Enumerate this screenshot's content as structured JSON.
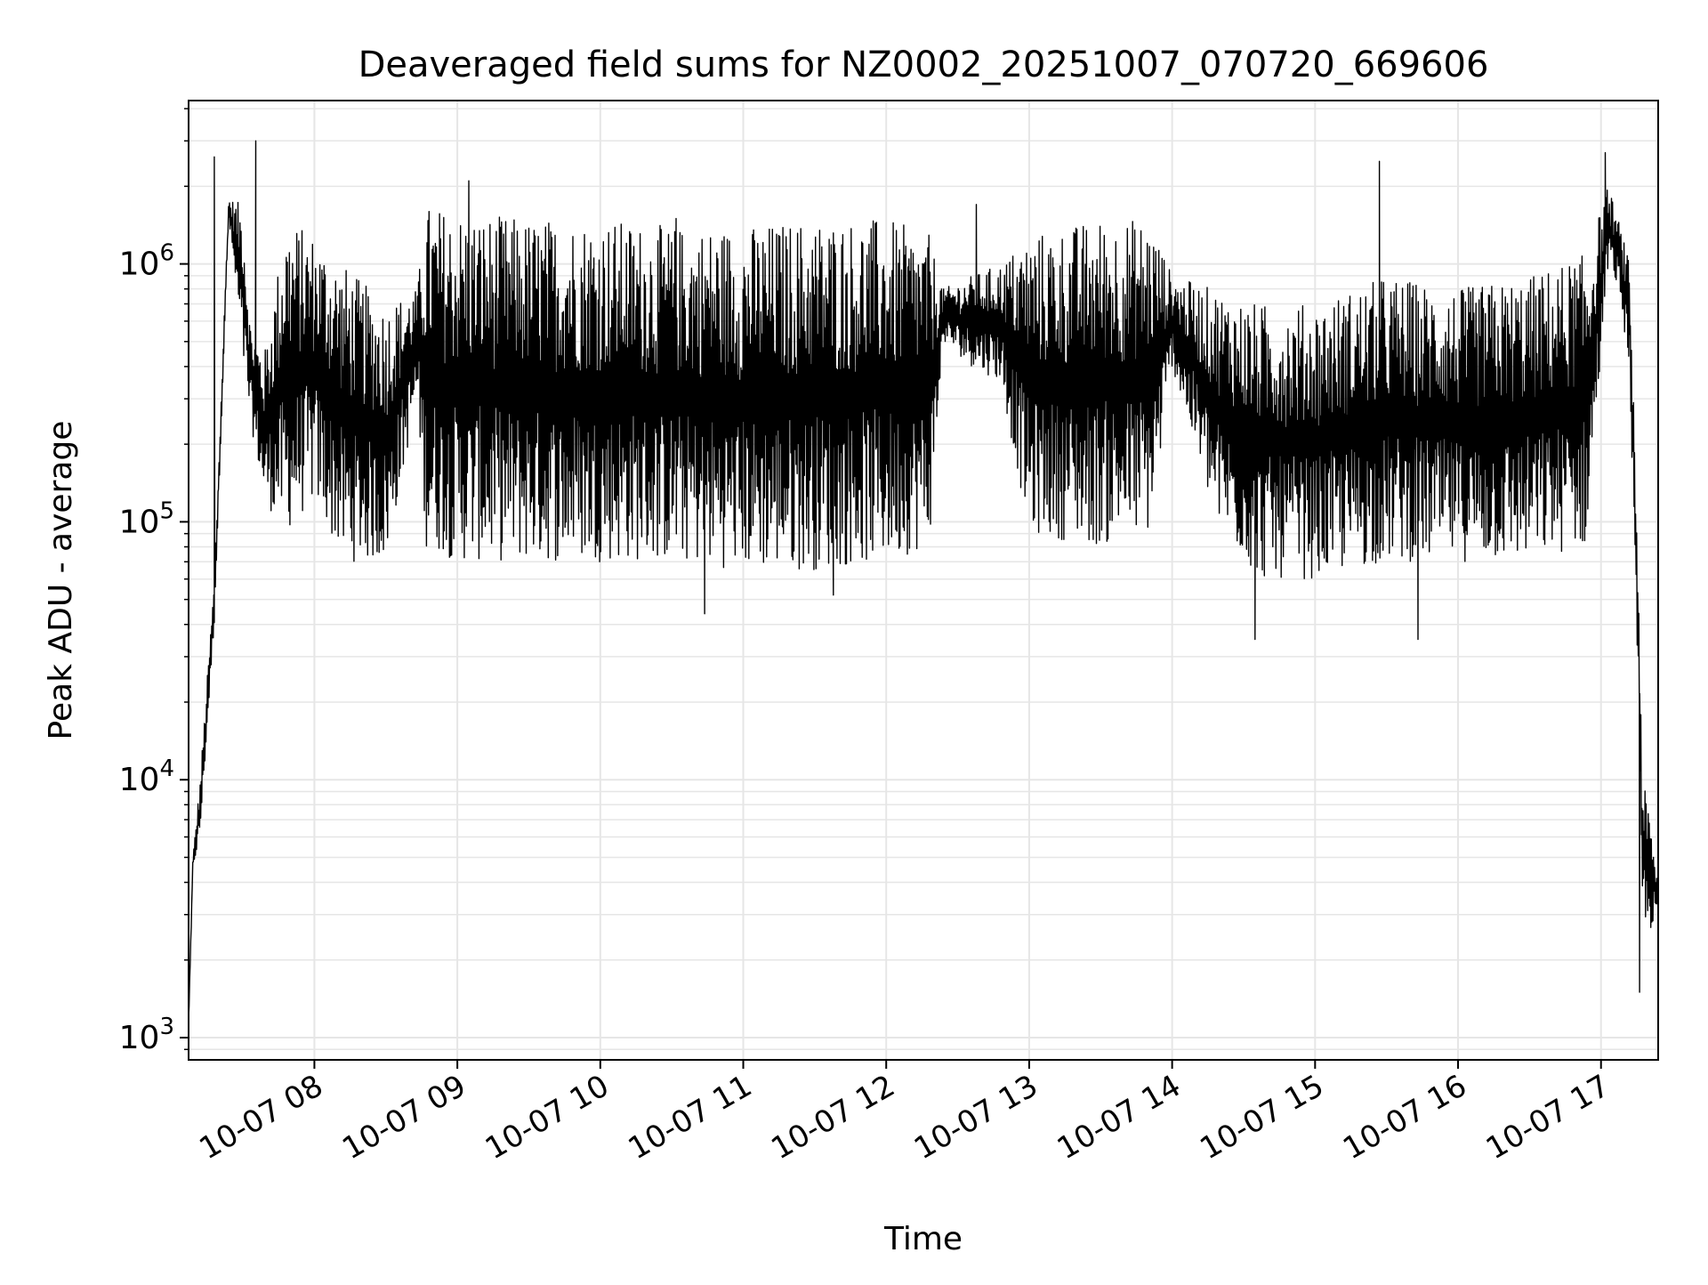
{
  "chart_data": {
    "type": "line",
    "title": "Deaveraged field sums for NZ0002_20251007_070720_669606",
    "xlabel": "Time",
    "ylabel": "Peak ADU - average",
    "yscale": "log",
    "ylim": [
      820,
      4300000
    ],
    "xlim_hours": [
      7.12,
      17.4
    ],
    "x_ticks": [
      {
        "hour": 8,
        "label": "10-07 08"
      },
      {
        "hour": 9,
        "label": "10-07 09"
      },
      {
        "hour": 10,
        "label": "10-07 10"
      },
      {
        "hour": 11,
        "label": "10-07 11"
      },
      {
        "hour": 12,
        "label": "10-07 12"
      },
      {
        "hour": 13,
        "label": "10-07 13"
      },
      {
        "hour": 14,
        "label": "10-07 14"
      },
      {
        "hour": 15,
        "label": "10-07 15"
      },
      {
        "hour": 16,
        "label": "10-07 16"
      },
      {
        "hour": 17,
        "label": "10-07 17"
      }
    ],
    "y_ticks": [
      {
        "value": 1000,
        "base": "10",
        "exp": "3"
      },
      {
        "value": 10000,
        "base": "10",
        "exp": "4"
      },
      {
        "value": 100000,
        "base": "10",
        "exp": "5"
      },
      {
        "value": 1000000,
        "base": "10",
        "exp": "6"
      }
    ],
    "grid": "both-major-minor",
    "line_color": "#000000",
    "grid_color": "#e6e6e6",
    "series": [
      {
        "name": "field-sum",
        "envelope_hour": [
          7.12,
          7.15,
          7.2,
          7.3,
          7.4,
          7.5,
          7.55,
          7.65,
          7.8,
          8.0,
          8.2,
          8.5,
          8.72,
          8.78,
          9.0,
          9.5,
          10.0,
          10.5,
          11.0,
          11.5,
          12.0,
          12.3,
          12.4,
          12.6,
          12.8,
          13.0,
          13.5,
          13.85,
          14.0,
          14.3,
          14.6,
          15.0,
          15.5,
          16.0,
          16.5,
          16.9,
          17.05,
          17.12,
          17.2,
          17.26,
          17.29,
          17.33,
          17.4
        ],
        "envelope_high": [
          1200,
          5000,
          10000,
          60000,
          1800000,
          1700000,
          600000,
          450000,
          1500000,
          1300000,
          1000000,
          700000,
          800000,
          1700000,
          1600000,
          1500000,
          1500000,
          1400000,
          1400000,
          1500000,
          1500000,
          1300000,
          800000,
          900000,
          1000000,
          1300000,
          1500000,
          1500000,
          900000,
          800000,
          700000,
          700000,
          900000,
          800000,
          900000,
          1100000,
          2000000,
          1500000,
          1000000,
          80000,
          10000,
          8000,
          4000
        ],
        "envelope_low": [
          1100,
          4500,
          6000,
          40000,
          1500000,
          400000,
          250000,
          120000,
          90000,
          120000,
          70000,
          70000,
          300000,
          80000,
          70000,
          70000,
          70000,
          70000,
          65000,
          65000,
          70000,
          80000,
          500000,
          400000,
          350000,
          90000,
          80000,
          90000,
          400000,
          100000,
          60000,
          60000,
          70000,
          70000,
          70000,
          80000,
          1000000,
          800000,
          400000,
          15000,
          3000,
          2500,
          3000
        ],
        "spikes": [
          {
            "hour": 7.3,
            "value": 2600000
          },
          {
            "hour": 7.59,
            "value": 3000000
          },
          {
            "hour": 9.08,
            "value": 2100000
          },
          {
            "hour": 10.53,
            "value": 1500000
          },
          {
            "hour": 10.73,
            "value": 44000
          },
          {
            "hour": 11.63,
            "value": 52000
          },
          {
            "hour": 12.63,
            "value": 1700000
          },
          {
            "hour": 14.58,
            "value": 35000
          },
          {
            "hour": 15.45,
            "value": 2500000
          },
          {
            "hour": 15.72,
            "value": 35000
          },
          {
            "hour": 17.03,
            "value": 2700000
          },
          {
            "hour": 17.27,
            "value": 1500
          }
        ]
      }
    ]
  }
}
